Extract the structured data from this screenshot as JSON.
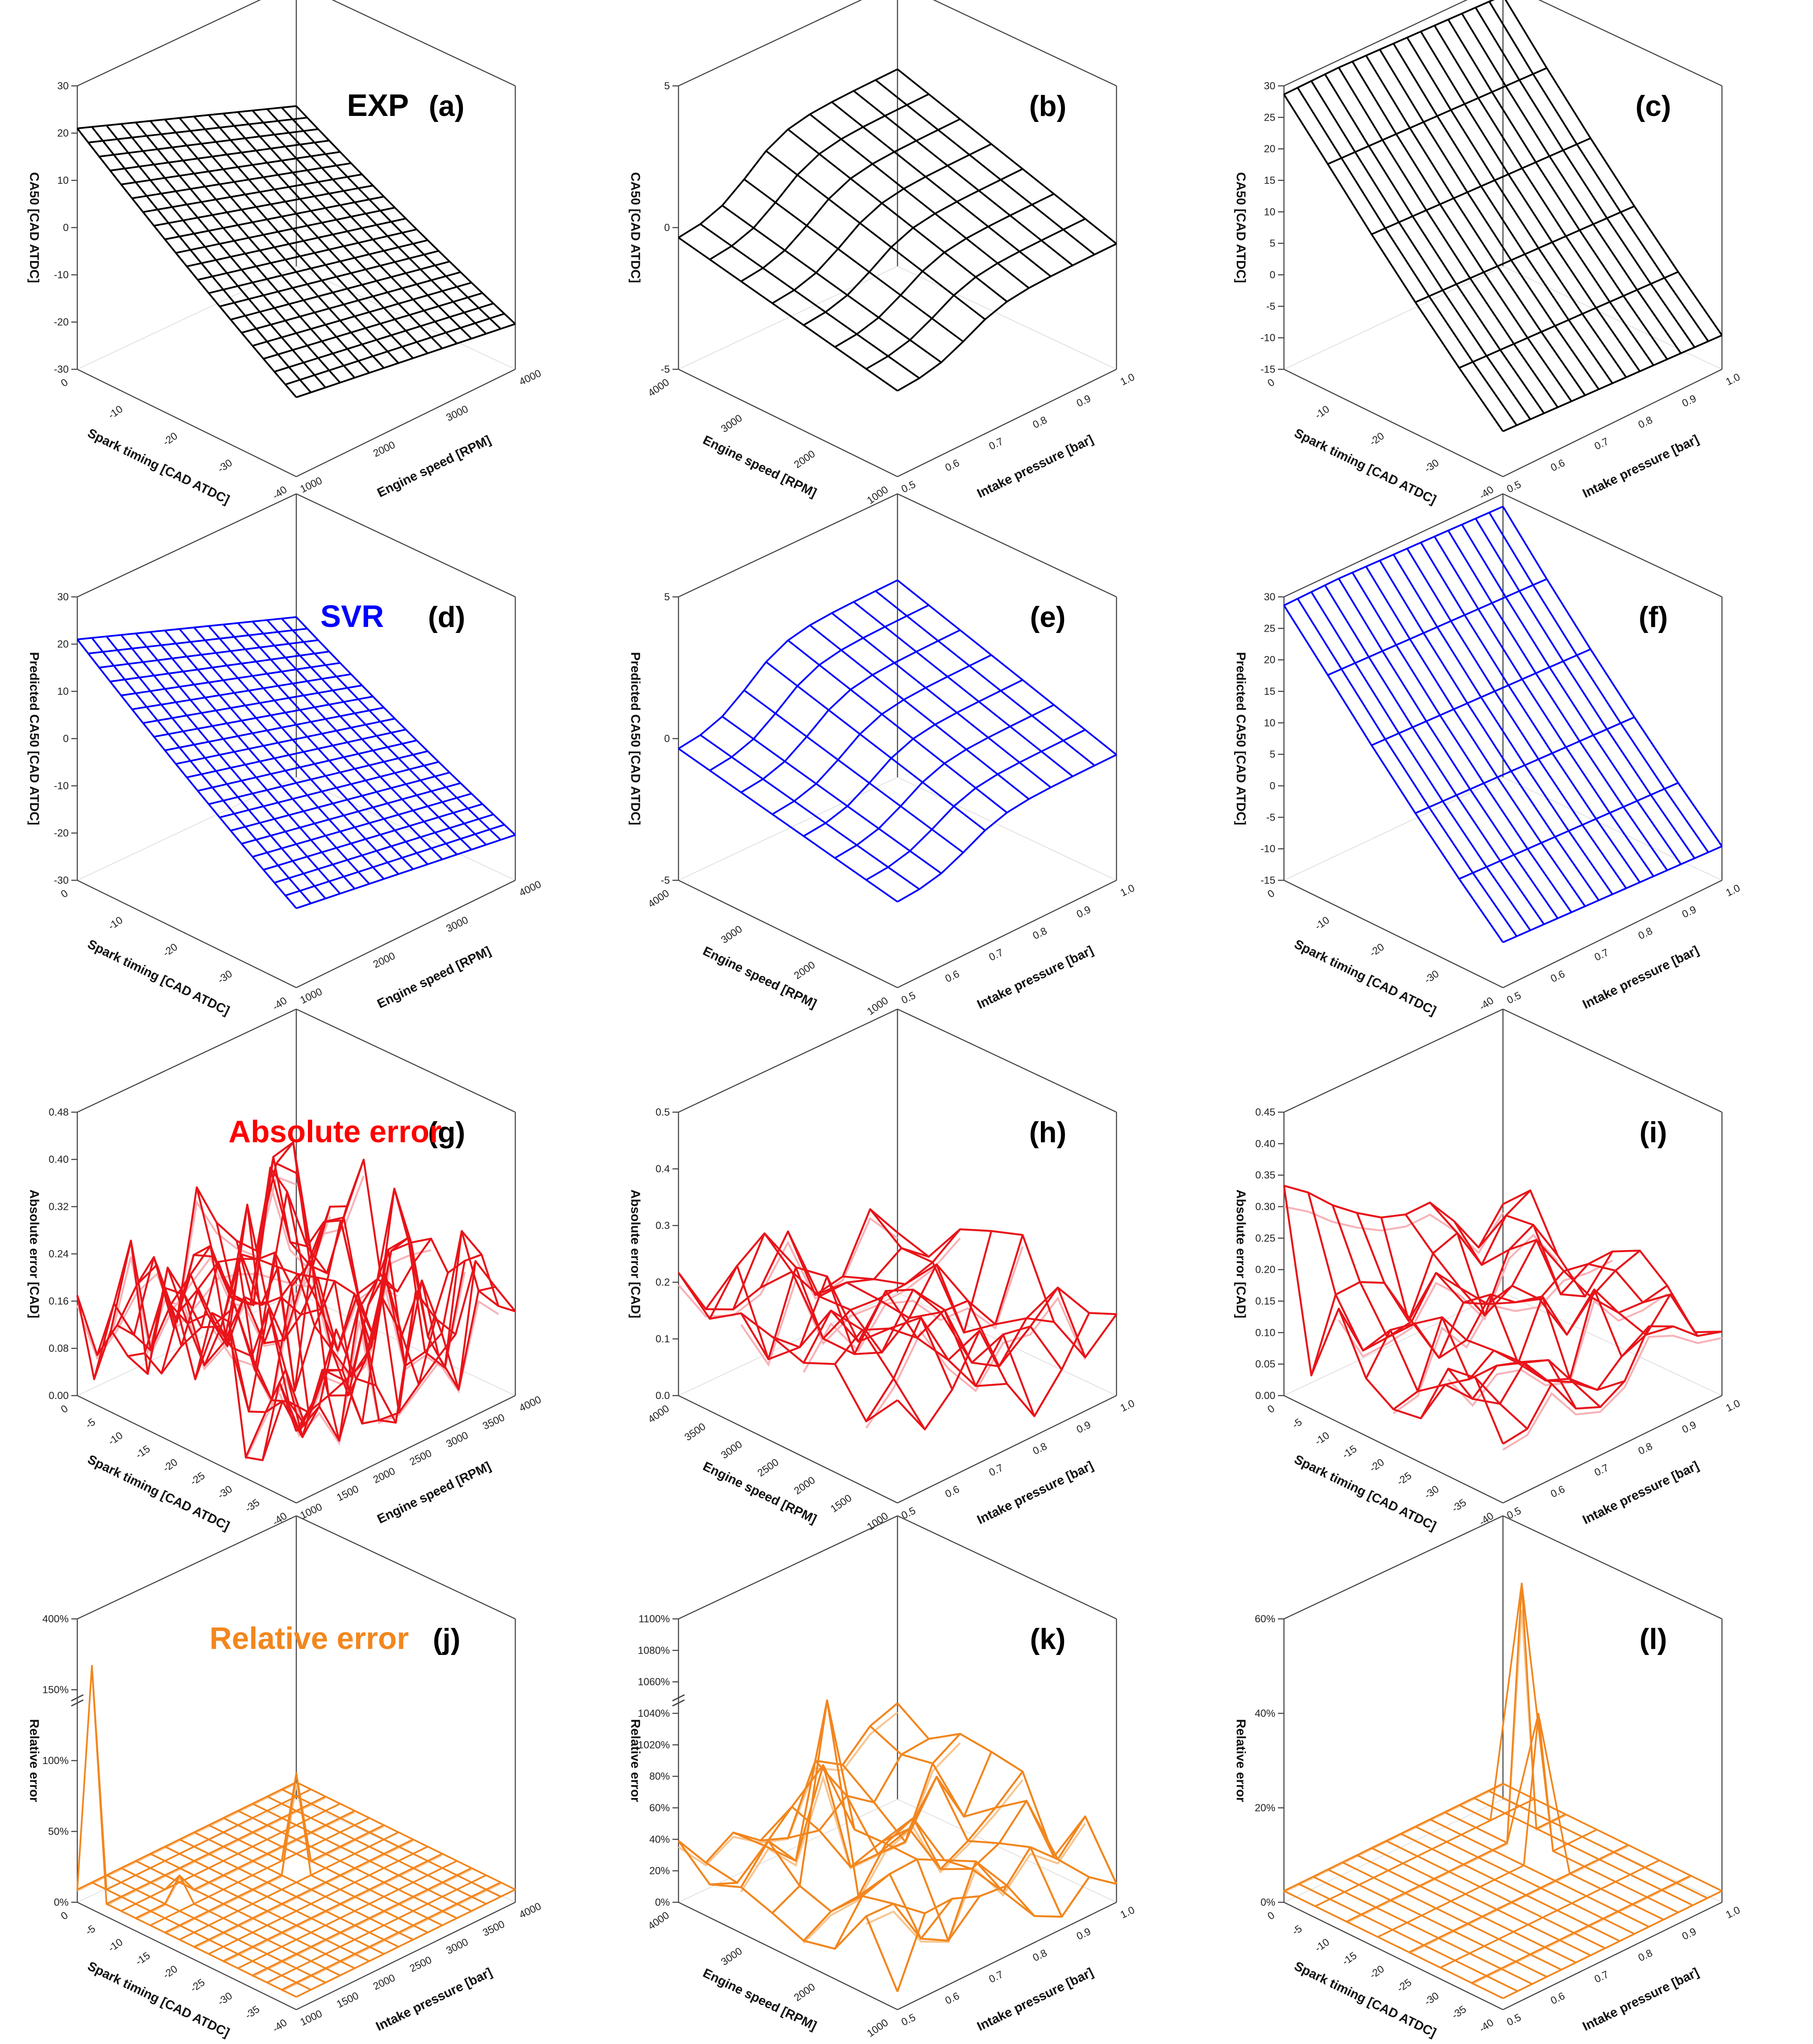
{
  "figure": {
    "rows": [
      {
        "id": "exp",
        "title": "EXP",
        "title_color": "#000000",
        "line_color": "#000000"
      },
      {
        "id": "svr",
        "title": "SVR",
        "title_color": "#0000FF",
        "line_color": "#0000FF"
      },
      {
        "id": "abs",
        "title": "Absolute error",
        "title_color": "#FF0000",
        "line_color": "#E8141A",
        "back_color": "#F7B3B8"
      },
      {
        "id": "rel",
        "title": "Relative error",
        "title_color": "#F2871E",
        "line_color": "#F2861E",
        "back_color": "#F8C690"
      }
    ]
  },
  "chart_data": [
    {
      "type": "surface3d",
      "panel": "(a)",
      "row": "exp",
      "style": "wire",
      "shape": "planeA",
      "zlabel": "CA50 [CAD ATDC]",
      "xlabel": "Spark timing [CAD ATDC]",
      "ylabel": "Engine speed [RPM]",
      "z_ticks": [
        "30",
        "20",
        "10",
        "0",
        "-10",
        "-20",
        "-30"
      ],
      "x_ticks": [
        "0",
        "-10",
        "-20",
        "-30",
        "-40"
      ],
      "y_ticks": [
        "1000",
        "2000",
        "3000",
        "4000"
      ],
      "zlim": [
        -30,
        30
      ],
      "xlim": [
        0,
        -40
      ],
      "ylim": [
        1000,
        4000
      ],
      "grid": [
        21,
        16
      ]
    },
    {
      "type": "surface3d",
      "panel": "(b)",
      "row": "exp",
      "style": "wire",
      "shape": "sigmoid",
      "zlabel": "CA50 [CAD ATDC]",
      "xlabel": "Engine speed [RPM]",
      "ylabel": "Intake pressure [bar]",
      "z_ticks": [
        "5",
        "0",
        "-5"
      ],
      "x_ticks": [
        "4000",
        "3000",
        "2000",
        "1000"
      ],
      "y_ticks": [
        "0.5",
        "0.6",
        "0.7",
        "0.8",
        "0.9",
        "1.0"
      ],
      "zlim": [
        -5,
        5
      ],
      "xlim": [
        4000,
        1000
      ],
      "ylim": [
        0.5,
        1.0
      ],
      "grid": [
        8,
        11
      ]
    },
    {
      "type": "surface3d",
      "panel": "(c)",
      "row": "exp",
      "style": "wire",
      "shape": "planeC",
      "zlabel": "CA50 [CAD ATDC]",
      "xlabel": "Spark timing [CAD ATDC]",
      "ylabel": "Intake pressure [bar]",
      "z_ticks": [
        "30",
        "25",
        "20",
        "15",
        "10",
        "5",
        "0",
        "-5",
        "-10",
        "-15"
      ],
      "x_ticks": [
        "0",
        "-10",
        "-20",
        "-30",
        "-40"
      ],
      "y_ticks": [
        "0.5",
        "0.6",
        "0.7",
        "0.8",
        "0.9",
        "1.0"
      ],
      "zlim": [
        -15,
        30
      ],
      "xlim": [
        0,
        -40
      ],
      "ylim": [
        0.5,
        1.0
      ],
      "grid": [
        6,
        17
      ]
    },
    {
      "type": "surface3d",
      "panel": "(d)",
      "row": "svr",
      "style": "wire",
      "shape": "planeA",
      "zlabel": "Predicted CA50 [CAD ATDC]",
      "xlabel": "Spark timing [CAD ATDC]",
      "ylabel": "Engine speed [RPM]",
      "z_ticks": [
        "30",
        "20",
        "10",
        "0",
        "-10",
        "-20",
        "-30"
      ],
      "x_ticks": [
        "0",
        "-10",
        "-20",
        "-30",
        "-40"
      ],
      "y_ticks": [
        "1000",
        "2000",
        "3000",
        "4000"
      ],
      "zlim": [
        -30,
        30
      ],
      "xlim": [
        0,
        -40
      ],
      "ylim": [
        1000,
        4000
      ],
      "grid": [
        21,
        16
      ]
    },
    {
      "type": "surface3d",
      "panel": "(e)",
      "row": "svr",
      "style": "wire",
      "shape": "sigmoid",
      "zlabel": "Predicted CA50 [CAD ATDC]",
      "xlabel": "Engine speed [RPM]",
      "ylabel": "Intake pressure [bar]",
      "z_ticks": [
        "5",
        "0",
        "-5"
      ],
      "x_ticks": [
        "4000",
        "3000",
        "2000",
        "1000"
      ],
      "y_ticks": [
        "0.5",
        "0.6",
        "0.7",
        "0.8",
        "0.9",
        "1.0"
      ],
      "zlim": [
        -5,
        5
      ],
      "xlim": [
        4000,
        1000
      ],
      "ylim": [
        0.5,
        1.0
      ],
      "grid": [
        8,
        11
      ]
    },
    {
      "type": "surface3d",
      "panel": "(f)",
      "row": "svr",
      "style": "wire",
      "shape": "planeC",
      "zlabel": "Predicted CA50 [CAD ATDC]",
      "xlabel": "Spark timing [CAD ATDC]",
      "ylabel": "Intake pressure [bar]",
      "z_ticks": [
        "30",
        "25",
        "20",
        "15",
        "10",
        "5",
        "0",
        "-5",
        "-10",
        "-15"
      ],
      "x_ticks": [
        "0",
        "-10",
        "-20",
        "-30",
        "-40"
      ],
      "y_ticks": [
        "0.5",
        "0.6",
        "0.7",
        "0.8",
        "0.9",
        "1.0"
      ],
      "zlim": [
        -15,
        30
      ],
      "xlim": [
        0,
        -40
      ],
      "ylim": [
        0.5,
        1.0
      ],
      "grid": [
        6,
        17
      ]
    },
    {
      "type": "surface3d",
      "panel": "(g)",
      "row": "abs",
      "style": "noisy",
      "shape": "noisyG",
      "seed": 7,
      "zlabel": "Absolute error [CAD]",
      "xlabel": "Spark timing [CAD ATDC]",
      "ylabel": "Engine speed [RPM]",
      "z_ticks": [
        "0.48",
        "0.40",
        "0.32",
        "0.24",
        "0.16",
        "0.08",
        "0.00"
      ],
      "x_ticks": [
        "0",
        "-5",
        "-10",
        "-15",
        "-20",
        "-25",
        "-30",
        "-35",
        "-40"
      ],
      "y_ticks": [
        "1000",
        "1500",
        "2000",
        "2500",
        "3000",
        "3500",
        "4000"
      ],
      "zlim": [
        0,
        0.48
      ],
      "xlim": [
        0,
        -40
      ],
      "ylim": [
        1000,
        4000
      ],
      "grid": [
        14,
        12
      ]
    },
    {
      "type": "surface3d",
      "panel": "(h)",
      "row": "abs",
      "style": "noisy",
      "shape": "noisyH",
      "seed": 11,
      "zlabel": "Absolute error [CAD]",
      "xlabel": "Engine speed [RPM]",
      "ylabel": "Intake pressure [bar]",
      "z_ticks": [
        "0.5",
        "0.4",
        "0.3",
        "0.2",
        "0.1",
        "0.0"
      ],
      "x_ticks": [
        "4000",
        "3500",
        "3000",
        "2500",
        "2000",
        "1500",
        "1000"
      ],
      "y_ticks": [
        "0.5",
        "0.6",
        "0.7",
        "0.8",
        "0.9",
        "1.0"
      ],
      "zlim": [
        0,
        0.5
      ],
      "xlim": [
        4000,
        1000
      ],
      "ylim": [
        0.5,
        1.0
      ],
      "grid": [
        8,
        9
      ]
    },
    {
      "type": "surface3d",
      "panel": "(i)",
      "row": "abs",
      "style": "noisy",
      "shape": "noisyI",
      "seed": 23,
      "zlabel": "Absolute error [CAD]",
      "xlabel": "Spark timing [CAD ATDC]",
      "ylabel": "Intake pressure [bar]",
      "z_ticks": [
        "0.45",
        "0.40",
        "0.35",
        "0.30",
        "0.25",
        "0.20",
        "0.15",
        "0.10",
        "0.05",
        "0.00"
      ],
      "x_ticks": [
        "0",
        "-5",
        "-10",
        "-15",
        "-20",
        "-25",
        "-30",
        "-35",
        "-40"
      ],
      "y_ticks": [
        "0.5",
        "0.6",
        "0.7",
        "0.8",
        "0.9",
        "1.0"
      ],
      "zlim": [
        0,
        0.45
      ],
      "xlim": [
        0,
        -40
      ],
      "ylim": [
        0.5,
        1.0
      ],
      "grid": [
        9,
        10
      ]
    },
    {
      "type": "surface3d",
      "panel": "(j)",
      "row": "rel",
      "style": "flat",
      "shape": "relJ",
      "zlabel": "Relative error",
      "xlabel": "Spark timing [CAD ATDC]",
      "ylabel": "Intake pressure [bar]",
      "z_ticks": [
        "400%",
        "150%",
        "100%",
        "50%",
        "0%"
      ],
      "x_ticks": [
        "0",
        "-5",
        "-10",
        "-15",
        "-20",
        "-25",
        "-30",
        "-35",
        "-40"
      ],
      "y_ticks": [
        "1000",
        "1500",
        "2000",
        "2500",
        "3000",
        "3500",
        "4000"
      ],
      "zlim": [
        0,
        400
      ],
      "xlim": [
        0,
        -40
      ],
      "ylim": [
        1000,
        4000
      ],
      "grid": [
        16,
        16
      ],
      "axis_break": true
    },
    {
      "type": "surface3d",
      "panel": "(k)",
      "row": "rel",
      "style": "noisy",
      "shape": "relK",
      "seed": 31,
      "zlabel": "Relative error",
      "xlabel": "Engine speed [RPM]",
      "ylabel": "Intake pressure [bar]",
      "z_ticks": [
        "1100%",
        "1080%",
        "1060%",
        "1040%",
        "1020%",
        "80%",
        "60%",
        "40%",
        "20%",
        "0%"
      ],
      "x_ticks": [
        "4000",
        "3000",
        "2000",
        "1000"
      ],
      "y_ticks": [
        "0.5",
        "0.6",
        "0.7",
        "0.8",
        "0.9",
        "1.0"
      ],
      "zlim": [
        0,
        1100
      ],
      "xlim": [
        4000,
        1000
      ],
      "ylim": [
        0.5,
        1.0
      ],
      "grid": [
        8,
        9
      ],
      "axis_break": true
    },
    {
      "type": "surface3d",
      "panel": "(l)",
      "row": "rel",
      "style": "flat",
      "shape": "relL",
      "zlabel": "Relative error",
      "xlabel": "Spark timing [CAD ATDC]",
      "ylabel": "Intake pressure [bar]",
      "z_ticks": [
        "60%",
        "40%",
        "20%",
        "0%"
      ],
      "x_ticks": [
        "0",
        "-5",
        "-10",
        "-15",
        "-20",
        "-25",
        "-30",
        "-35",
        "-40"
      ],
      "y_ticks": [
        "0.5",
        "0.6",
        "0.7",
        "0.8",
        "0.9",
        "1.0"
      ],
      "zlim": [
        0,
        60
      ],
      "xlim": [
        0,
        -40
      ],
      "ylim": [
        0.5,
        1.0
      ],
      "grid": [
        8,
        16
      ]
    }
  ]
}
